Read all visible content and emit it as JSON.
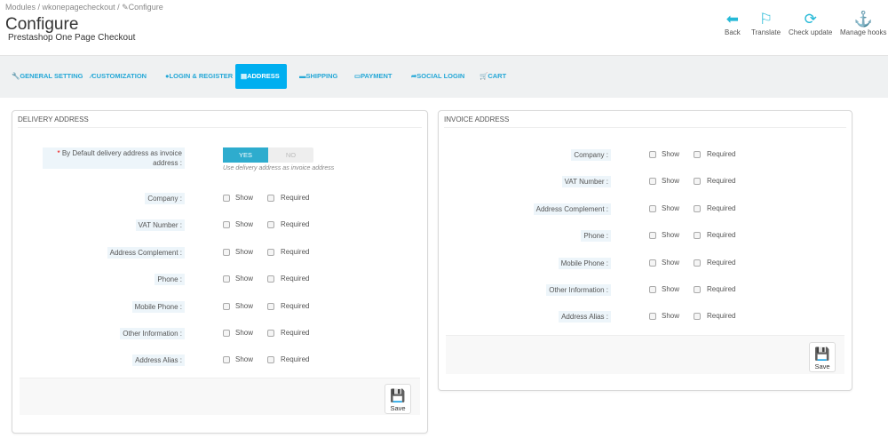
{
  "breadcrumb": [
    "Modules",
    "wkonepagecheckout",
    "Configure"
  ],
  "header": {
    "title": "Configure",
    "subtitle": "Prestashop One Page Checkout"
  },
  "toolbar": [
    {
      "label": "Back",
      "icon": "back-circle-icon"
    },
    {
      "label": "Translate",
      "icon": "flag-icon"
    },
    {
      "label": "Check update",
      "icon": "refresh-icon"
    },
    {
      "label": "Manage hooks",
      "icon": "anchor-icon"
    }
  ],
  "tabs": [
    {
      "label": "General Setting",
      "icon": "wrench-icon"
    },
    {
      "label": "Customization",
      "icon": "brush-icon"
    },
    {
      "label": "Login & Register",
      "icon": "user-icon"
    },
    {
      "label": "Address",
      "icon": "book-icon",
      "active": true
    },
    {
      "label": "Shipping",
      "icon": "truck-icon"
    },
    {
      "label": "Payment",
      "icon": "money-icon"
    },
    {
      "label": "Social Login",
      "icon": "share-icon"
    },
    {
      "label": "Cart",
      "icon": "cart-icon"
    }
  ],
  "delivery": {
    "title": "Delivery Address",
    "default_label": "By Default delivery address as invoice address :",
    "yes": "YES",
    "no": "NO",
    "default_value": "YES",
    "help": "Use delivery address as invoice address",
    "fields": [
      "Company :",
      "VAT Number :",
      "Address Complement :",
      "Phone :",
      "Mobile Phone :",
      "Other Information :",
      "Address Alias :"
    ],
    "save": "Save"
  },
  "invoice": {
    "title": "Invoice Address",
    "fields": [
      "Company :",
      "VAT Number :",
      "Address Complement :",
      "Phone :",
      "Mobile Phone :",
      "Other Information :",
      "Address Alias :"
    ],
    "save": "Save"
  },
  "show_label": "Show",
  "required_label": "Required",
  "accent": "#25b9d7"
}
